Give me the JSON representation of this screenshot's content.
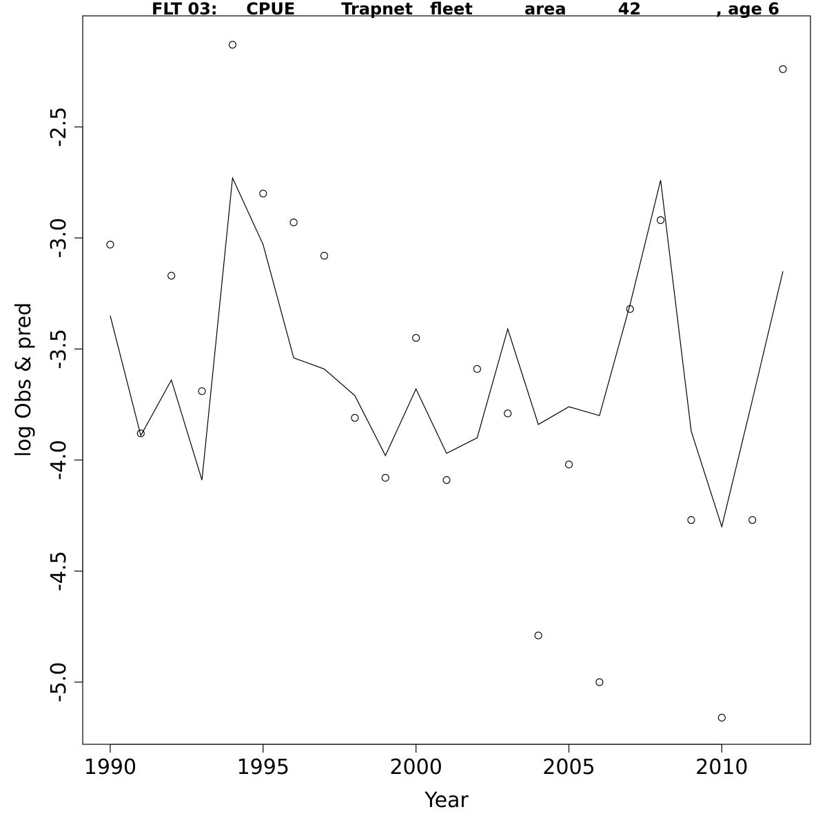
{
  "chart_data": {
    "type": "line",
    "title": "FLT 03:     CPUE        Trapnet   fleet         area         42             , age 6",
    "xlabel": "Year",
    "ylabel": "log Obs & pred",
    "xlim": [
      1989.1,
      2012.9
    ],
    "ylim": [
      -5.28,
      -2.0
    ],
    "xticks": [
      1990,
      1995,
      2000,
      2005,
      2010
    ],
    "xtick_labels": [
      "1990",
      "1995",
      "2000",
      "2005",
      "2010"
    ],
    "yticks": [
      -5.0,
      -4.5,
      -4.0,
      -3.5,
      -3.0,
      -2.5
    ],
    "ytick_labels": [
      "-5.0",
      "-4.5",
      "-4.0",
      "-3.5",
      "-3.0",
      "-2.5"
    ],
    "grid": false,
    "x": [
      1990,
      1991,
      1992,
      1993,
      1994,
      1995,
      1996,
      1997,
      1998,
      1999,
      2000,
      2001,
      2002,
      2003,
      2004,
      2005,
      2006,
      2007,
      2008,
      2009,
      2010,
      2011,
      2012
    ],
    "series": [
      {
        "style": "points",
        "values": [
          -3.03,
          -3.88,
          -3.17,
          -3.69,
          -2.13,
          -2.8,
          -2.93,
          -3.08,
          -3.81,
          -4.08,
          -3.45,
          -4.09,
          -3.59,
          -3.79,
          -4.79,
          -4.02,
          -5.0,
          -3.32,
          -2.92,
          -4.27,
          -5.16,
          -4.27,
          -2.24
        ]
      },
      {
        "style": "line",
        "values": [
          -3.35,
          -3.89,
          -3.64,
          -4.09,
          -2.73,
          -3.03,
          -3.54,
          -3.59,
          -3.71,
          -3.98,
          -3.68,
          -3.97,
          -3.9,
          -3.41,
          -3.84,
          -3.76,
          -3.8,
          -3.3,
          -2.74,
          -3.87,
          -4.3,
          -3.73,
          -3.15
        ]
      }
    ]
  }
}
